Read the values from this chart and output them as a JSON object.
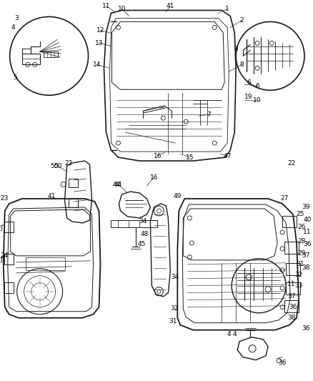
{
  "bg_color": "#ffffff",
  "fig_width": 4.38,
  "fig_height": 5.33,
  "dpi": 100,
  "line_color": "#1a1a1a",
  "text_color": "#000000",
  "font_size": 6.5
}
